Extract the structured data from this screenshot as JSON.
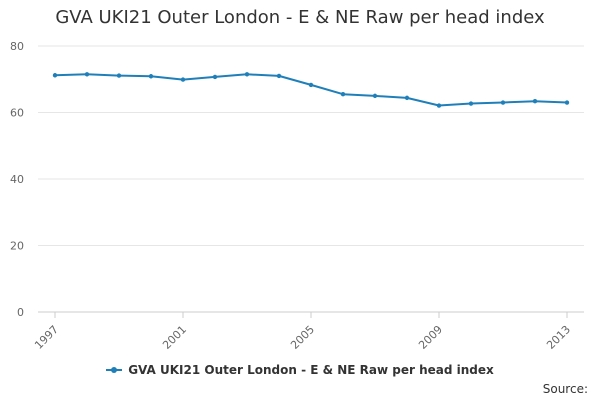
{
  "chart_data": {
    "type": "line",
    "title": "GVA UKI21 Outer London - E & NE Raw per head index",
    "xlabel": "",
    "ylabel": "",
    "x": [
      1997,
      1998,
      1999,
      2000,
      2001,
      2002,
      2003,
      2004,
      2005,
      2006,
      2007,
      2008,
      2009,
      2010,
      2011,
      2012,
      2013
    ],
    "x_tick_labels": [
      "1997",
      "2001",
      "2005",
      "2009",
      "2013"
    ],
    "y_ticks": [
      0,
      20,
      40,
      60,
      80
    ],
    "ylim": [
      0,
      80
    ],
    "grid": true,
    "legend_position": "bottom",
    "series": [
      {
        "name": "GVA UKI21 Outer London - E & NE Raw per head index",
        "color": "#1f7fb9",
        "values": [
          71.2,
          71.5,
          71.1,
          70.9,
          69.9,
          70.7,
          71.5,
          71.0,
          68.3,
          65.5,
          65.0,
          64.4,
          62.1,
          62.7,
          63.0,
          63.4,
          63.0
        ]
      }
    ]
  },
  "source_label": "Source:"
}
